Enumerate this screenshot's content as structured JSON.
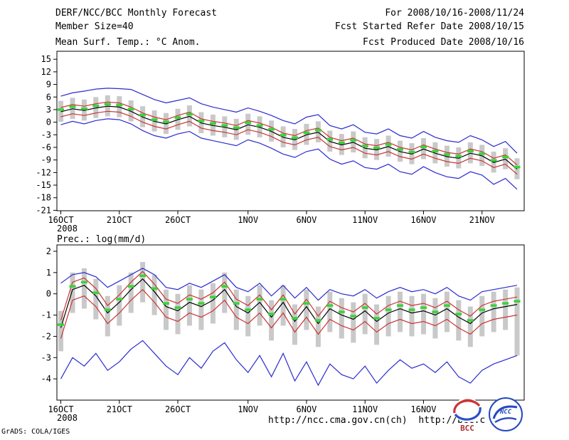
{
  "header": {
    "title": "DERF/NCC/BCC Monthly Forecast",
    "forecast_range": "For 2008/10/16-2008/11/24",
    "member_size": "Member Size=40",
    "refer_date": "Fcst Started Refer Date 2008/10/15",
    "produced_date": "Fcst Produced Date 2008/10/16"
  },
  "footer": {
    "url_text": "http://ncc.cma.gov.cn(ch)  http://bcc.c",
    "credit": "GrADS: COLA/IGES",
    "logo_bcc_label": "BCC",
    "logo_ncc_label": "NCC"
  },
  "colors": {
    "envelope": "#2b2bd0",
    "quartile": "#cc3333",
    "mean": "#000000",
    "median": "#3ad23a",
    "bar": "#c9c9c9",
    "frame": "#000000"
  },
  "chart_data": [
    {
      "name": "surface-temperature-anomaly",
      "type": "line",
      "title": "Mean Surf. Temp.: °C Anom.",
      "n_points": 40,
      "ylim": [
        -21.1,
        16.9
      ],
      "y_ticks": [
        15,
        12,
        9,
        6,
        3,
        0,
        -3,
        -6,
        -9,
        -12,
        -15,
        -18,
        -21
      ],
      "x_tick_days": [
        0,
        5,
        10,
        16,
        21,
        26,
        31,
        36
      ],
      "x_tick_labels": [
        "16OCT",
        "21OCT",
        "26OCT",
        "1NOV",
        "6NOV",
        "11NOV",
        "16NOV",
        "21NOV"
      ],
      "x_sub_label": "2008",
      "grid": false,
      "legend": false,
      "series": [
        {
          "name": "ensemble-max",
          "color_key": "envelope",
          "values": [
            6.2,
            7.0,
            7.4,
            7.9,
            8.1,
            8.0,
            7.8,
            6.6,
            5.4,
            4.6,
            5.2,
            5.8,
            4.4,
            3.6,
            3.0,
            2.4,
            3.4,
            2.6,
            1.6,
            0.4,
            -0.4,
            1.2,
            1.8,
            -0.8,
            -1.6,
            -0.6,
            -2.4,
            -2.8,
            -1.6,
            -3.2,
            -3.8,
            -2.2,
            -3.6,
            -4.4,
            -4.8,
            -3.2,
            -4.2,
            -5.8,
            -4.6,
            -7.4
          ]
        },
        {
          "name": "upper-quartile",
          "color_key": "quartile",
          "values": [
            3.5,
            4.2,
            3.8,
            4.4,
            4.8,
            4.6,
            3.6,
            2.2,
            1.2,
            0.6,
            1.6,
            2.4,
            0.8,
            0.2,
            -0.2,
            -0.8,
            0.4,
            -0.2,
            -1.2,
            -2.6,
            -3.2,
            -2.0,
            -1.4,
            -3.6,
            -4.4,
            -3.8,
            -5.2,
            -5.6,
            -4.8,
            -6.0,
            -6.6,
            -5.4,
            -6.4,
            -7.2,
            -7.6,
            -6.4,
            -7.0,
            -8.6,
            -7.8,
            -10.2
          ]
        },
        {
          "name": "ensemble-mean",
          "color_key": "mean",
          "values": [
            2.5,
            3.2,
            2.8,
            3.4,
            3.8,
            3.6,
            2.6,
            1.2,
            0.2,
            -0.4,
            0.6,
            1.4,
            -0.2,
            -0.8,
            -1.2,
            -1.8,
            -0.6,
            -1.2,
            -2.2,
            -3.6,
            -4.2,
            -3.0,
            -2.4,
            -4.6,
            -5.4,
            -4.8,
            -6.2,
            -6.6,
            -5.8,
            -7.0,
            -7.6,
            -6.4,
            -7.4,
            -8.2,
            -8.6,
            -7.4,
            -8.0,
            -9.6,
            -8.8,
            -11.2
          ]
        },
        {
          "name": "ensemble-median",
          "color_key": "median",
          "style": "dashes",
          "values": [
            3.0,
            3.7,
            3.2,
            3.9,
            4.3,
            4.1,
            3.1,
            1.7,
            0.6,
            0.1,
            1.1,
            1.9,
            0.3,
            -0.3,
            -0.8,
            -1.3,
            -0.1,
            -0.8,
            -1.7,
            -3.1,
            -3.7,
            -2.5,
            -1.9,
            -4.1,
            -4.9,
            -4.3,
            -5.7,
            -6.1,
            -5.3,
            -6.5,
            -7.1,
            -5.9,
            -6.9,
            -7.7,
            -8.1,
            -6.9,
            -7.5,
            -9.1,
            -8.3,
            -10.7
          ]
        },
        {
          "name": "lower-quartile",
          "color_key": "quartile",
          "values": [
            1.3,
            2.0,
            1.6,
            2.2,
            2.6,
            2.4,
            1.4,
            0.0,
            -1.0,
            -1.6,
            -0.6,
            0.2,
            -1.4,
            -2.0,
            -2.4,
            -3.0,
            -1.8,
            -2.4,
            -3.4,
            -4.8,
            -5.4,
            -4.2,
            -3.6,
            -5.8,
            -6.6,
            -6.0,
            -7.4,
            -7.8,
            -7.0,
            -8.2,
            -8.8,
            -7.6,
            -8.6,
            -9.4,
            -9.8,
            -8.6,
            -9.2,
            -10.8,
            -10.0,
            -12.4
          ]
        },
        {
          "name": "ensemble-min",
          "color_key": "envelope",
          "values": [
            -0.6,
            0.2,
            -0.4,
            0.4,
            0.8,
            0.6,
            -0.4,
            -2.0,
            -3.2,
            -3.8,
            -2.8,
            -2.2,
            -3.8,
            -4.4,
            -5.0,
            -5.6,
            -4.2,
            -5.0,
            -6.2,
            -7.6,
            -8.4,
            -7.0,
            -6.4,
            -8.8,
            -10.0,
            -9.2,
            -10.8,
            -11.2,
            -10.0,
            -11.8,
            -12.4,
            -10.6,
            -12.0,
            -13.0,
            -13.4,
            -11.8,
            -12.6,
            -14.8,
            -13.4,
            -16.0
          ]
        },
        {
          "name": "spread-bar-top",
          "color_key": "bar",
          "style": "bar",
          "values": [
            5.1,
            5.8,
            5.4,
            6.0,
            6.4,
            6.2,
            5.2,
            3.8,
            2.8,
            2.2,
            3.2,
            4.0,
            2.4,
            1.8,
            1.4,
            0.8,
            2.0,
            1.4,
            0.4,
            -1.0,
            -1.6,
            -0.4,
            0.2,
            -2.0,
            -2.8,
            -2.2,
            -3.6,
            -4.0,
            -3.2,
            -4.4,
            -5.0,
            -3.8,
            -4.8,
            -5.6,
            -6.0,
            -4.8,
            -5.4,
            -7.0,
            -6.2,
            -8.6
          ]
        },
        {
          "name": "spread-bar-bottom",
          "color_key": "bar",
          "style": "bar",
          "values": [
            0.1,
            0.8,
            0.4,
            1.0,
            1.4,
            1.2,
            0.2,
            -1.2,
            -2.2,
            -2.8,
            -1.8,
            -1.0,
            -2.6,
            -3.2,
            -3.6,
            -4.2,
            -3.0,
            -3.6,
            -4.6,
            -6.0,
            -6.6,
            -5.4,
            -4.8,
            -7.0,
            -7.8,
            -7.2,
            -8.6,
            -9.0,
            -8.2,
            -9.4,
            -10.0,
            -8.8,
            -9.8,
            -10.6,
            -11.0,
            -9.8,
            -10.4,
            -12.0,
            -11.2,
            -13.6
          ]
        }
      ]
    },
    {
      "name": "precipitation",
      "type": "line",
      "title": "Prec.: log(mm/d)",
      "n_points": 40,
      "ylim": [
        -5.0,
        2.3
      ],
      "y_ticks": [
        2,
        1,
        0,
        -1,
        -2,
        -3,
        -4
      ],
      "x_tick_days": [
        0,
        5,
        10,
        16,
        21,
        26,
        31
      ],
      "x_tick_labels": [
        "16OCT",
        "21OCT",
        "26OCT",
        "1NOV",
        "6NOV",
        "11NOV",
        "16NOV"
      ],
      "x_sub_label": "2008",
      "grid": false,
      "legend": false,
      "series": [
        {
          "name": "ensemble-max",
          "color_key": "envelope",
          "values": [
            0.5,
            0.9,
            1.0,
            0.8,
            0.3,
            0.6,
            0.9,
            1.2,
            0.9,
            0.3,
            0.2,
            0.5,
            0.3,
            0.6,
            0.9,
            0.3,
            0.1,
            0.5,
            -0.1,
            0.4,
            -0.2,
            0.3,
            -0.3,
            0.2,
            0.0,
            -0.1,
            0.2,
            -0.2,
            0.1,
            0.3,
            0.1,
            0.2,
            0.0,
            0.3,
            -0.1,
            -0.3,
            0.1,
            0.2,
            0.3,
            0.4
          ]
        },
        {
          "name": "upper-quartile",
          "color_key": "quartile",
          "values": [
            -1.25,
            0.55,
            0.75,
            0.25,
            -0.55,
            -0.05,
            0.55,
            1.05,
            0.45,
            -0.25,
            -0.45,
            -0.05,
            -0.25,
            0.05,
            0.55,
            -0.25,
            -0.55,
            -0.05,
            -0.75,
            -0.05,
            -0.95,
            -0.25,
            -1.05,
            -0.35,
            -0.65,
            -0.85,
            -0.45,
            -0.95,
            -0.55,
            -0.35,
            -0.55,
            -0.45,
            -0.65,
            -0.35,
            -0.75,
            -1.05,
            -0.55,
            -0.35,
            -0.25,
            -0.15
          ]
        },
        {
          "name": "ensemble-mean",
          "color_key": "mean",
          "values": [
            -1.6,
            0.2,
            0.4,
            -0.1,
            -0.9,
            -0.4,
            0.2,
            0.7,
            0.1,
            -0.6,
            -0.8,
            -0.4,
            -0.6,
            -0.3,
            0.2,
            -0.6,
            -0.9,
            -0.4,
            -1.1,
            -0.4,
            -1.3,
            -0.6,
            -1.4,
            -0.7,
            -1.0,
            -1.2,
            -0.8,
            -1.3,
            -0.9,
            -0.7,
            -0.9,
            -0.8,
            -1.0,
            -0.7,
            -1.1,
            -1.4,
            -0.9,
            -0.7,
            -0.6,
            -0.5
          ]
        },
        {
          "name": "ensemble-median",
          "color_key": "median",
          "style": "dashes",
          "values": [
            -1.45,
            0.35,
            0.55,
            0.05,
            -0.75,
            -0.25,
            0.35,
            0.85,
            0.25,
            -0.45,
            -0.65,
            -0.25,
            -0.45,
            -0.15,
            0.35,
            -0.45,
            -0.75,
            -0.25,
            -0.95,
            -0.25,
            -1.15,
            -0.45,
            -1.25,
            -0.55,
            -0.85,
            -1.05,
            -0.65,
            -1.15,
            -0.75,
            -0.55,
            -0.75,
            -0.65,
            -0.85,
            -0.55,
            -0.95,
            -1.25,
            -0.75,
            -0.55,
            -0.45,
            -0.35
          ]
        },
        {
          "name": "lower-quartile",
          "color_key": "quartile",
          "values": [
            -2.1,
            -0.3,
            -0.1,
            -0.6,
            -1.4,
            -0.9,
            -0.3,
            0.2,
            -0.4,
            -1.1,
            -1.3,
            -0.9,
            -1.1,
            -0.8,
            -0.3,
            -1.1,
            -1.4,
            -0.9,
            -1.6,
            -0.9,
            -1.8,
            -1.1,
            -1.9,
            -1.2,
            -1.5,
            -1.7,
            -1.3,
            -1.8,
            -1.4,
            -1.2,
            -1.4,
            -1.3,
            -1.5,
            -1.2,
            -1.6,
            -1.9,
            -1.4,
            -1.2,
            -1.1,
            -1.0
          ]
        },
        {
          "name": "ensemble-min",
          "color_key": "envelope",
          "values": [
            -4.0,
            -3.0,
            -3.4,
            -2.8,
            -3.6,
            -3.2,
            -2.6,
            -2.2,
            -2.8,
            -3.4,
            -3.8,
            -3.0,
            -3.5,
            -2.7,
            -2.3,
            -3.1,
            -3.7,
            -2.9,
            -3.9,
            -2.8,
            -4.1,
            -3.2,
            -4.3,
            -3.3,
            -3.8,
            -4.0,
            -3.4,
            -4.2,
            -3.6,
            -3.1,
            -3.5,
            -3.3,
            -3.7,
            -3.2,
            -3.9,
            -4.2,
            -3.6,
            -3.3,
            -3.1,
            -2.9
          ]
        },
        {
          "name": "spread-bar-top",
          "color_key": "bar",
          "style": "bar",
          "values": [
            -0.8,
            1.0,
            1.2,
            0.7,
            -0.1,
            0.4,
            1.0,
            1.5,
            0.9,
            0.2,
            0.0,
            0.4,
            0.2,
            0.5,
            1.0,
            0.2,
            -0.1,
            0.4,
            -0.3,
            0.4,
            -0.5,
            0.2,
            -0.6,
            0.1,
            -0.2,
            -0.4,
            0.0,
            -0.5,
            -0.1,
            0.1,
            -0.1,
            0.0,
            -0.2,
            0.1,
            -0.3,
            -0.6,
            -0.1,
            0.1,
            0.2,
            0.3
          ]
        },
        {
          "name": "spread-bar-bottom",
          "color_key": "bar",
          "style": "bar",
          "values": [
            -2.7,
            -0.9,
            -0.7,
            -1.2,
            -2.0,
            -1.5,
            -0.9,
            -0.4,
            -1.0,
            -1.7,
            -1.9,
            -1.5,
            -1.7,
            -1.4,
            -0.9,
            -1.7,
            -2.0,
            -1.5,
            -2.2,
            -1.5,
            -2.4,
            -1.7,
            -2.5,
            -1.8,
            -2.1,
            -2.3,
            -1.9,
            -2.4,
            -2.0,
            -1.8,
            -2.0,
            -1.9,
            -2.1,
            -1.8,
            -2.2,
            -2.5,
            -2.0,
            -1.8,
            -1.7,
            -2.9
          ]
        }
      ]
    }
  ]
}
